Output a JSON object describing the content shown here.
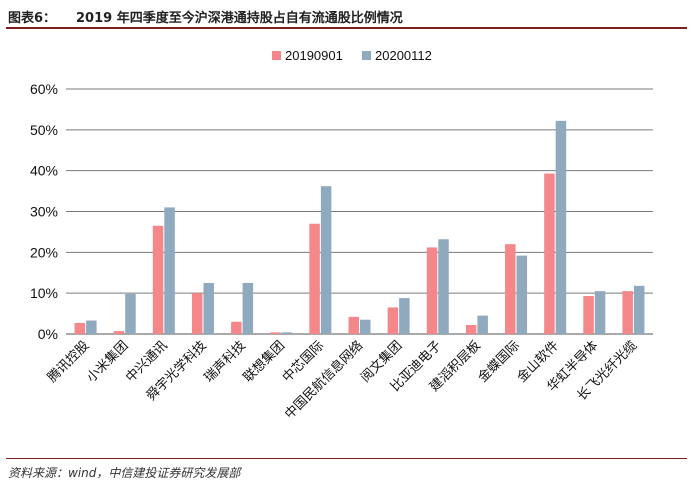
{
  "header": {
    "figure_label": "图表6：",
    "title": "2019 年四季度至今沪深港通持股占自有流通股比例情况"
  },
  "source": "资料来源：wind，中信建投证券研究发展部",
  "chart_data": {
    "type": "bar",
    "title": "",
    "xlabel": "",
    "ylabel": "",
    "ylim": [
      0,
      60
    ],
    "yticks": [
      "0%",
      "10%",
      "20%",
      "30%",
      "40%",
      "50%",
      "60%"
    ],
    "grid": true,
    "legend_position": "top-center",
    "categories": [
      "腾讯控股",
      "小米集团",
      "中兴通讯",
      "舜宇光学科技",
      "瑞声科技",
      "联想集团",
      "中芯国际",
      "中国民航信息网络",
      "阅文集团",
      "比亚迪电子",
      "建滔积层板",
      "金蝶国际",
      "金山软件",
      "华虹半导体",
      "长飞光纤光缆"
    ],
    "series": [
      {
        "name": "20190901",
        "color": "#f4878a",
        "values": [
          2.7,
          0.7,
          26.5,
          10.0,
          3.0,
          0.4,
          27.0,
          4.2,
          6.5,
          21.2,
          2.2,
          22.0,
          39.3,
          9.3,
          10.5
        ]
      },
      {
        "name": "20200112",
        "color": "#8fa9bf",
        "values": [
          3.3,
          9.8,
          31.0,
          12.5,
          12.5,
          0.4,
          36.2,
          3.5,
          8.8,
          23.2,
          4.5,
          19.2,
          52.2,
          10.5,
          11.8
        ]
      }
    ]
  }
}
